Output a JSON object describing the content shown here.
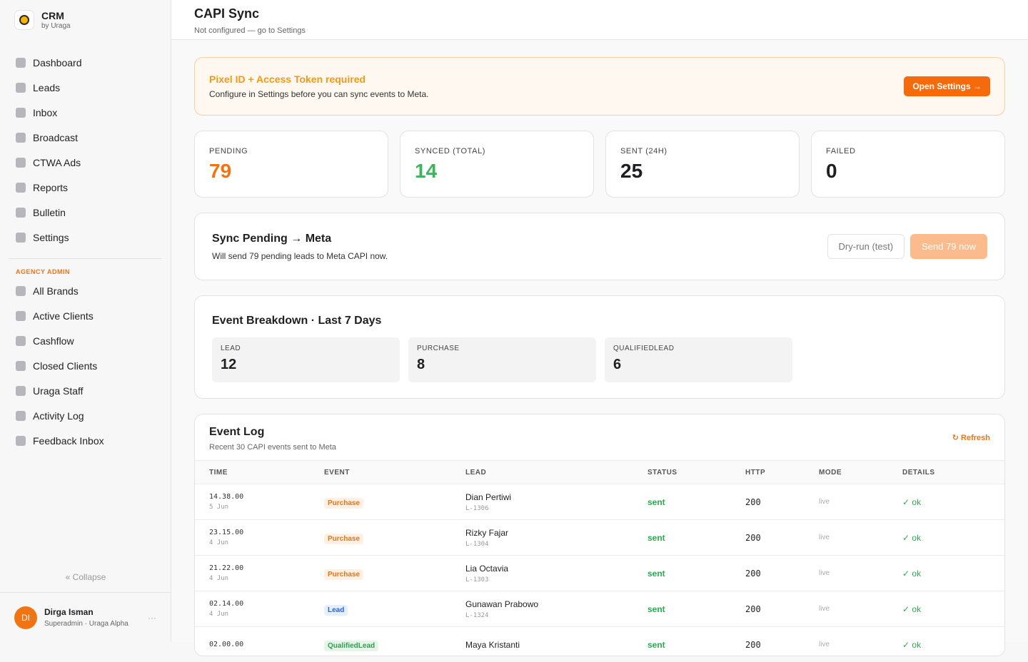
{
  "sidebar": {
    "brand": {
      "name": "CRM",
      "by": "by Uraga"
    },
    "nav": [
      "Dashboard",
      "Leads",
      "Inbox",
      "Broadcast",
      "CTWA Ads",
      "Reports",
      "Bulletin",
      "Settings"
    ],
    "section": "AGENCY ADMIN",
    "admin_nav": [
      "All Brands",
      "Active Clients",
      "Cashflow",
      "Closed Clients",
      "Uraga Staff",
      "Activity Log",
      "Feedback Inbox"
    ],
    "collapse": "« Collapse",
    "user": {
      "initials": "DI",
      "name": "Dirga Isman",
      "role": "Superadmin · Uraga Alpha",
      "more": "···"
    }
  },
  "header": {
    "title": "CAPI Sync",
    "subtitle": "Not configured — go to Settings"
  },
  "alert": {
    "title": "Pixel ID + Access Token required",
    "text": "Configure in Settings before you can sync events to Meta.",
    "button": "Open Settings →"
  },
  "stats": [
    {
      "label": "PENDING",
      "value": 79,
      "color": "#f07413"
    },
    {
      "label": "SYNCED (TOTAL)",
      "value": 14,
      "color": "#3db35a"
    },
    {
      "label": "SENT (24H)",
      "value": 25,
      "color": "#1f1f23"
    },
    {
      "label": "FAILED",
      "value": 0,
      "color": "#1f1f23"
    }
  ],
  "sync": {
    "title": "Sync Pending → Meta",
    "text": "Will send 79 pending leads to Meta CAPI now.",
    "dry_run": "Dry-run (test)",
    "send": "Send 79 now"
  },
  "breakdown": {
    "title": "Event Breakdown · Last 7 Days",
    "items": [
      {
        "label": "LEAD",
        "value": 12
      },
      {
        "label": "PURCHASE",
        "value": 8
      },
      {
        "label": "QUALIFIEDLEAD",
        "value": 6
      }
    ]
  },
  "log": {
    "title": "Event Log",
    "subtitle": "Recent 30 CAPI events sent to Meta",
    "refresh": "↻ Refresh",
    "columns": [
      "TIME",
      "EVENT",
      "LEAD",
      "STATUS",
      "HTTP",
      "MODE",
      "DETAILS"
    ],
    "rows": [
      {
        "time": "14.38.00",
        "date": "5 Jun",
        "event": "Purchase",
        "event_color": "#e8750f",
        "event_bg": "#fff0e3",
        "lead": "Dian Pertiwi",
        "lead_id": "L-1306",
        "status": "sent",
        "http": "200",
        "mode": "live",
        "details": "✓ ok"
      },
      {
        "time": "23.15.00",
        "date": "4 Jun",
        "event": "Purchase",
        "event_color": "#e8750f",
        "event_bg": "#fff0e3",
        "lead": "Rizky Fajar",
        "lead_id": "L-1304",
        "status": "sent",
        "http": "200",
        "mode": "live",
        "details": "✓ ok"
      },
      {
        "time": "21.22.00",
        "date": "4 Jun",
        "event": "Purchase",
        "event_color": "#e8750f",
        "event_bg": "#fff0e3",
        "lead": "Lia Octavia",
        "lead_id": "L-1303",
        "status": "sent",
        "http": "200",
        "mode": "live",
        "details": "✓ ok"
      },
      {
        "time": "02.14.00",
        "date": "4 Jun",
        "event": "Lead",
        "event_color": "#2563eb",
        "event_bg": "#e6efff",
        "lead": "Gunawan Prabowo",
        "lead_id": "L-1324",
        "status": "sent",
        "http": "200",
        "mode": "live",
        "details": "✓ ok"
      },
      {
        "time": "02.00.00",
        "event": "QualifiedLead",
        "event_color": "#2f9e50",
        "event_bg": "#e3f6e8",
        "lead": "Maya Kristanti",
        "status": "sent",
        "http": "200",
        "mode": "live",
        "details": "✓ ok"
      }
    ]
  }
}
